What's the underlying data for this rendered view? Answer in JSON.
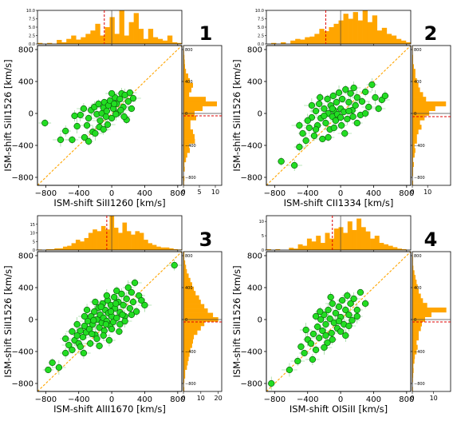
{
  "chart_data": [
    {
      "type": "scatter",
      "panel_number": "1",
      "xlabel": "ISM-shift SiII1260 [km/s]",
      "ylabel": "ISM-shift SiII1526 [km/s]",
      "xlim": [
        -900,
        850
      ],
      "ylim": [
        -900,
        850
      ],
      "xticks": [
        -800,
        -400,
        0,
        400,
        800
      ],
      "yticks": [
        -800,
        -400,
        0,
        400,
        800
      ],
      "top_hist_ylim": [
        0,
        10
      ],
      "top_hist_yticks": [
        "0.0",
        "2.5",
        "5.0",
        "7.5",
        "10.0"
      ],
      "right_hist_xlim": [
        0,
        12
      ],
      "right_hist_xticks": [
        "0",
        "5",
        "10"
      ],
      "top_median": -90,
      "right_median": -30,
      "points": [
        [
          -810,
          -120
        ],
        [
          -620,
          -330
        ],
        [
          -560,
          -220
        ],
        [
          -480,
          -330
        ],
        [
          -420,
          -160
        ],
        [
          -380,
          -20
        ],
        [
          -330,
          -300
        ],
        [
          -300,
          -150
        ],
        [
          -280,
          -60
        ],
        [
          -250,
          40
        ],
        [
          -230,
          -230
        ],
        [
          -210,
          80
        ],
        [
          -180,
          -10
        ],
        [
          -160,
          120
        ],
        [
          -140,
          -90
        ],
        [
          -120,
          0
        ],
        [
          -100,
          70
        ],
        [
          -90,
          140
        ],
        [
          -70,
          -40
        ],
        [
          -60,
          30
        ],
        [
          -40,
          100
        ],
        [
          -20,
          160
        ],
        [
          0,
          -60
        ],
        [
          20,
          60
        ],
        [
          40,
          200
        ],
        [
          60,
          120
        ],
        [
          80,
          10
        ],
        [
          100,
          180
        ],
        [
          120,
          250
        ],
        [
          140,
          80
        ],
        [
          160,
          230
        ],
        [
          180,
          -80
        ],
        [
          200,
          150
        ],
        [
          220,
          260
        ],
        [
          240,
          60
        ],
        [
          260,
          190
        ],
        [
          -150,
          -170
        ],
        [
          -50,
          -140
        ],
        [
          50,
          -10
        ],
        [
          110,
          40
        ],
        [
          -280,
          -350
        ],
        [
          -200,
          -250
        ],
        [
          0,
          250
        ],
        [
          -450,
          -30
        ],
        [
          -340,
          60
        ],
        [
          150,
          -40
        ],
        [
          -100,
          -200
        ],
        [
          30,
          120
        ]
      ],
      "top_hist": [
        0.3,
        0,
        0.3,
        0,
        1.2,
        0.5,
        1.5,
        2.5,
        1.3,
        2,
        3,
        4,
        6,
        2.5,
        5,
        8,
        3,
        10,
        2.5,
        6.5,
        9.2,
        4.5,
        1.5,
        4.5,
        2,
        1.5,
        1,
        2.5,
        0.5,
        0.3
      ],
      "right_hist": [
        0.2,
        0.3,
        0,
        0.4,
        0.3,
        0.8,
        1.2,
        2,
        1.8,
        3.6,
        3.5,
        3,
        2.2,
        2.2,
        4,
        3.5,
        6,
        10.5,
        7,
        1.8,
        2.5,
        3,
        2,
        1.5,
        0.8,
        0.5,
        0.4,
        0.3,
        0.2,
        0.1
      ]
    },
    {
      "type": "scatter",
      "panel_number": "2",
      "xlabel": "ISM-shift CII1334 [km/s]",
      "ylabel": "ISM-shift SiII1526 [km/s]",
      "xlim": [
        -900,
        850
      ],
      "ylim": [
        -900,
        850
      ],
      "xticks": [
        -800,
        -400,
        0,
        400,
        800
      ],
      "yticks": [
        -800,
        -400,
        0,
        400,
        800
      ],
      "top_hist_ylim": [
        0,
        10
      ],
      "top_hist_yticks": [
        "0.0",
        "2.5",
        "5.0",
        "7.5",
        "10.0"
      ],
      "right_hist_xlim": [
        0,
        25
      ],
      "right_hist_xticks": [
        "0",
        "10"
      ],
      "top_median": -180,
      "right_median": -40,
      "points": [
        [
          -720,
          -600
        ],
        [
          -560,
          -650
        ],
        [
          -500,
          -420
        ],
        [
          -460,
          -250
        ],
        [
          -420,
          -340
        ],
        [
          -380,
          -180
        ],
        [
          -350,
          -50
        ],
        [
          -320,
          -280
        ],
        [
          -300,
          30
        ],
        [
          -280,
          -150
        ],
        [
          -260,
          120
        ],
        [
          -240,
          -60
        ],
        [
          -220,
          -320
        ],
        [
          -200,
          60
        ],
        [
          -180,
          -120
        ],
        [
          -160,
          180
        ],
        [
          -150,
          0
        ],
        [
          -130,
          -200
        ],
        [
          -120,
          100
        ],
        [
          -100,
          -40
        ],
        [
          -90,
          220
        ],
        [
          -80,
          40
        ],
        [
          -60,
          -90
        ],
        [
          -50,
          140
        ],
        [
          -40,
          -10
        ],
        [
          -20,
          260
        ],
        [
          0,
          60
        ],
        [
          10,
          -150
        ],
        [
          20,
          180
        ],
        [
          40,
          20
        ],
        [
          60,
          300
        ],
        [
          80,
          -70
        ],
        [
          100,
          140
        ],
        [
          120,
          250
        ],
        [
          140,
          40
        ],
        [
          160,
          320
        ],
        [
          180,
          100
        ],
        [
          200,
          200
        ],
        [
          240,
          -20
        ],
        [
          260,
          150
        ],
        [
          300,
          270
        ],
        [
          340,
          80
        ],
        [
          380,
          360
        ],
        [
          420,
          200
        ],
        [
          460,
          60
        ],
        [
          500,
          170
        ],
        [
          540,
          220
        ],
        [
          -400,
          -90
        ],
        [
          -300,
          -200
        ],
        [
          -200,
          -30
        ],
        [
          -100,
          60
        ],
        [
          0,
          -50
        ],
        [
          100,
          30
        ],
        [
          200,
          -120
        ],
        [
          -250,
          200
        ],
        [
          -150,
          -300
        ],
        [
          50,
          -250
        ],
        [
          -350,
          100
        ],
        [
          300,
          0
        ],
        [
          -500,
          -150
        ],
        [
          -80,
          -180
        ],
        [
          150,
          -40
        ]
      ],
      "top_hist": [
        0,
        0.3,
        0,
        0.5,
        0,
        1,
        1.5,
        1.3,
        2,
        2.2,
        3,
        4.5,
        3.8,
        5,
        6,
        7,
        9,
        7.5,
        9.5,
        7,
        10,
        6.5,
        8.5,
        4,
        4.8,
        3,
        2.5,
        1.5,
        1,
        0.5
      ],
      "right_hist": [
        0.5,
        0,
        0.5,
        0.5,
        1,
        0.5,
        1.5,
        2,
        1.5,
        3,
        3,
        4,
        6,
        5,
        8,
        11,
        15,
        22,
        9,
        7,
        5,
        4,
        3,
        2,
        2,
        1,
        0.5,
        0.5,
        0.3,
        0.3
      ]
    },
    {
      "type": "scatter",
      "panel_number": "3",
      "xlabel": "ISM-shift AlII1670 [km/s]",
      "ylabel": "ISM-shift SiII1526 [km/s]",
      "xlim": [
        -900,
        850
      ],
      "ylim": [
        -900,
        850
      ],
      "xticks": [
        -800,
        -400,
        0,
        400,
        800
      ],
      "yticks": [
        -800,
        -400,
        0,
        400,
        800
      ],
      "top_hist_ylim": [
        0,
        20
      ],
      "top_hist_yticks": [
        "0",
        "5",
        "10",
        "15"
      ],
      "right_hist_xlim": [
        0,
        22
      ],
      "right_hist_xticks": [
        "0",
        "10",
        "20"
      ],
      "top_median": -60,
      "right_median": -30,
      "points": [
        [
          -770,
          -630
        ],
        [
          -720,
          -540
        ],
        [
          -640,
          -600
        ],
        [
          -560,
          -420
        ],
        [
          -520,
          -320
        ],
        [
          -480,
          -380
        ],
        [
          -450,
          -260
        ],
        [
          -420,
          -200
        ],
        [
          -400,
          -300
        ],
        [
          -380,
          -140
        ],
        [
          -350,
          -220
        ],
        [
          -330,
          -80
        ],
        [
          -310,
          -160
        ],
        [
          -290,
          -20
        ],
        [
          -270,
          -120
        ],
        [
          -250,
          40
        ],
        [
          -230,
          -60
        ],
        [
          -210,
          100
        ],
        [
          -200,
          -190
        ],
        [
          -180,
          0
        ],
        [
          -160,
          150
        ],
        [
          -150,
          -100
        ],
        [
          -140,
          60
        ],
        [
          -120,
          -40
        ],
        [
          -110,
          200
        ],
        [
          -100,
          20
        ],
        [
          -90,
          -140
        ],
        [
          -80,
          120
        ],
        [
          -60,
          -20
        ],
        [
          -50,
          240
        ],
        [
          -40,
          80
        ],
        [
          -20,
          -80
        ],
        [
          -10,
          180
        ],
        [
          0,
          40
        ],
        [
          20,
          -30
        ],
        [
          30,
          280
        ],
        [
          40,
          140
        ],
        [
          60,
          20
        ],
        [
          80,
          220
        ],
        [
          100,
          90
        ],
        [
          120,
          320
        ],
        [
          140,
          180
        ],
        [
          160,
          40
        ],
        [
          180,
          260
        ],
        [
          200,
          400
        ],
        [
          220,
          140
        ],
        [
          240,
          340
        ],
        [
          260,
          220
        ],
        [
          280,
          460
        ],
        [
          300,
          100
        ],
        [
          330,
          300
        ],
        [
          360,
          240
        ],
        [
          400,
          180
        ],
        [
          760,
          680
        ],
        [
          -340,
          -420
        ],
        [
          -260,
          -300
        ],
        [
          -180,
          -240
        ],
        [
          -100,
          -200
        ],
        [
          0,
          -120
        ],
        [
          100,
          -60
        ],
        [
          -420,
          -60
        ],
        [
          -300,
          120
        ],
        [
          -200,
          220
        ],
        [
          -60,
          300
        ],
        [
          60,
          360
        ],
        [
          -480,
          -150
        ],
        [
          -150,
          -330
        ],
        [
          -30,
          -260
        ],
        [
          160,
          -20
        ],
        [
          240,
          60
        ],
        [
          -560,
          -240
        ],
        [
          -220,
          -10
        ],
        [
          -70,
          -60
        ],
        [
          50,
          200
        ],
        [
          130,
          60
        ],
        [
          -380,
          -340
        ],
        [
          -330,
          40
        ],
        [
          -240,
          -180
        ],
        [
          -130,
          160
        ],
        [
          -10,
          100
        ],
        [
          90,
          -150
        ]
      ],
      "top_hist": [
        0.3,
        0,
        0.5,
        0.5,
        1,
        1,
        2,
        2.5,
        4,
        6,
        5,
        7,
        10,
        12,
        11,
        14,
        12,
        20,
        13,
        10,
        16,
        11,
        9,
        11,
        10,
        6,
        4,
        3,
        2,
        1.5,
        1.5,
        1,
        0.5,
        0.3
      ],
      "right_hist": [
        0.5,
        0.3,
        0.5,
        1,
        1,
        2,
        2.5,
        3,
        3.5,
        4,
        5,
        5.5,
        6,
        8,
        10,
        12,
        20,
        17,
        14,
        12,
        10,
        9,
        7,
        6,
        5,
        4,
        3,
        2,
        1.5,
        1,
        0.5,
        0.5
      ]
    },
    {
      "type": "scatter",
      "panel_number": "4",
      "xlabel": "ISM-shift OISiII [km/s]",
      "ylabel": "ISM-shift SiII1526 [km/s]",
      "xlim": [
        -900,
        850
      ],
      "ylim": [
        -900,
        850
      ],
      "xticks": [
        -800,
        -400,
        0,
        400,
        800
      ],
      "yticks": [
        -800,
        -400,
        0,
        400,
        800
      ],
      "top_hist_ylim": [
        0,
        12
      ],
      "top_hist_yticks": [
        "0",
        "5",
        "10"
      ],
      "right_hist_xlim": [
        0,
        18
      ],
      "right_hist_xticks": [
        "0",
        "10"
      ],
      "top_median": -100,
      "right_median": -30,
      "points": [
        [
          -840,
          -800
        ],
        [
          -620,
          -630
        ],
        [
          -520,
          -520
        ],
        [
          -480,
          -340
        ],
        [
          -440,
          -420
        ],
        [
          -400,
          -250
        ],
        [
          -360,
          -300
        ],
        [
          -330,
          -180
        ],
        [
          -300,
          -380
        ],
        [
          -280,
          -90
        ],
        [
          -260,
          -230
        ],
        [
          -240,
          0
        ],
        [
          -220,
          -140
        ],
        [
          -200,
          60
        ],
        [
          -180,
          -60
        ],
        [
          -160,
          -290
        ],
        [
          -150,
          120
        ],
        [
          -130,
          10
        ],
        [
          -110,
          -170
        ],
        [
          -100,
          200
        ],
        [
          -80,
          -40
        ],
        [
          -60,
          80
        ],
        [
          -40,
          -110
        ],
        [
          -20,
          160
        ],
        [
          0,
          30
        ],
        [
          20,
          240
        ],
        [
          40,
          -60
        ],
        [
          60,
          120
        ],
        [
          80,
          300
        ],
        [
          100,
          60
        ],
        [
          120,
          200
        ],
        [
          140,
          -10
        ],
        [
          160,
          260
        ],
        [
          200,
          120
        ],
        [
          240,
          340
        ],
        [
          -340,
          -500
        ],
        [
          -200,
          -350
        ],
        [
          -100,
          -250
        ],
        [
          0,
          -150
        ],
        [
          100,
          -80
        ],
        [
          -250,
          100
        ],
        [
          -120,
          280
        ],
        [
          60,
          -200
        ],
        [
          -420,
          -130
        ],
        [
          -300,
          40
        ],
        [
          -20,
          -20
        ],
        [
          200,
          40
        ],
        [
          -180,
          -200
        ],
        [
          300,
          200
        ]
      ],
      "top_hist": [
        0.3,
        0,
        0.3,
        0,
        0,
        0.8,
        0.5,
        2,
        1.5,
        4,
        3,
        5,
        2.5,
        6,
        4,
        7.5,
        8,
        6,
        10,
        7,
        11,
        8,
        6.5,
        4,
        5,
        2.5,
        2,
        1.5,
        1,
        0.5,
        0.3,
        0
      ],
      "right_hist": [
        0.3,
        0,
        0.3,
        0.4,
        0.6,
        0.5,
        1,
        1.2,
        2,
        2.5,
        2,
        3,
        3,
        4,
        4.5,
        6,
        9,
        16,
        7,
        5,
        4,
        3,
        2.5,
        2,
        1.5,
        1,
        0.5,
        0.3,
        0.3,
        0.2
      ]
    }
  ]
}
